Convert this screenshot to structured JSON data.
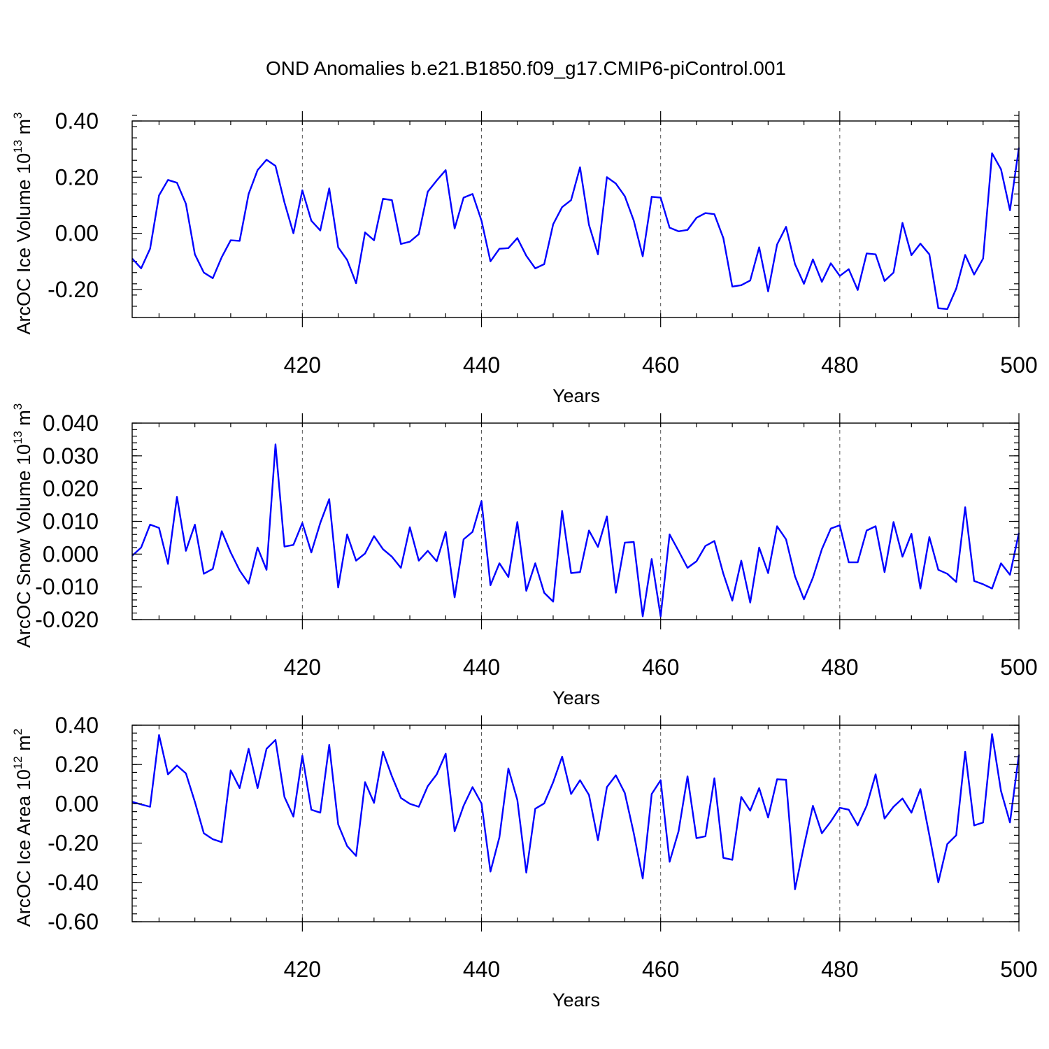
{
  "title": "OND Anomalies b.e21.B1850.f09_g17.CMIP6-piControl.001",
  "colors": {
    "line": "#0000ff",
    "grid": "#555555",
    "text": "#000000"
  },
  "chart_data": [
    {
      "type": "line",
      "ylabel": "ArcOC Ice Volume 10",
      "ylabel_exponent": "13",
      "ylabel_unit": " m",
      "ylabel_unit_exponent": "3",
      "xlabel": "Years",
      "xlim": [
        401,
        500
      ],
      "ylim": [
        -0.3,
        0.4
      ],
      "xticks": [
        420,
        440,
        460,
        480,
        500
      ],
      "xtick_labels": [
        "420",
        "440",
        "460",
        "480",
        "500"
      ],
      "yticks": [
        0.4,
        0.2,
        0.0,
        -0.2
      ],
      "ytick_labels": [
        "0.40",
        "0.20",
        "0.00",
        "-0.20"
      ],
      "yminor_step": 0.04,
      "grid": "dashed vertical at major x ticks",
      "series": [
        {
          "name": "ArcOC Ice Volume",
          "x_start": 401,
          "values": [
            -0.09,
            -0.125,
            -0.055,
            0.135,
            0.19,
            0.18,
            0.105,
            -0.075,
            -0.14,
            -0.16,
            -0.085,
            -0.025,
            -0.027,
            0.14,
            0.225,
            0.262,
            0.24,
            0.11,
            0.0,
            0.153,
            0.045,
            0.01,
            0.16,
            -0.05,
            -0.095,
            -0.178,
            0.003,
            -0.025,
            0.123,
            0.118,
            -0.038,
            -0.03,
            -0.003,
            0.148,
            0.188,
            0.225,
            0.017,
            0.127,
            0.14,
            0.045,
            -0.1,
            -0.055,
            -0.053,
            -0.017,
            -0.08,
            -0.125,
            -0.11,
            0.032,
            0.093,
            0.118,
            0.235,
            0.03,
            -0.075,
            0.2,
            0.177,
            0.132,
            0.045,
            -0.082,
            0.13,
            0.127,
            0.02,
            0.007,
            0.012,
            0.055,
            0.072,
            0.068,
            -0.017,
            -0.19,
            -0.185,
            -0.168,
            -0.05,
            -0.207,
            -0.04,
            0.023,
            -0.11,
            -0.18,
            -0.093,
            -0.173,
            -0.107,
            -0.152,
            -0.128,
            -0.202,
            -0.072,
            -0.075,
            -0.17,
            -0.14,
            0.037,
            -0.078,
            -0.037,
            -0.075,
            -0.267,
            -0.27,
            -0.197,
            -0.077,
            -0.147,
            -0.09,
            0.285,
            0.228,
            0.082,
            0.305
          ]
        }
      ]
    },
    {
      "type": "line",
      "ylabel": "ArcOC Snow Volume 10",
      "ylabel_exponent": "13",
      "ylabel_unit": " m",
      "ylabel_unit_exponent": "3",
      "xlabel": "Years",
      "xlim": [
        401,
        500
      ],
      "ylim": [
        -0.02,
        0.04
      ],
      "xticks": [
        420,
        440,
        460,
        480,
        500
      ],
      "xtick_labels": [
        "420",
        "440",
        "460",
        "480",
        "500"
      ],
      "yticks": [
        0.04,
        0.03,
        0.02,
        0.01,
        0.0,
        -0.01,
        -0.02
      ],
      "ytick_labels": [
        "0.040",
        "0.030",
        "0.020",
        "0.010",
        "0.000",
        "-0.010",
        "-0.020"
      ],
      "yminor_step": 0.002,
      "grid": "dashed vertical at major x ticks",
      "series": [
        {
          "name": "ArcOC Snow Volume",
          "x_start": 401,
          "values": [
            -0.0005,
            0.002,
            0.009,
            0.008,
            -0.003,
            0.0175,
            0.001,
            0.009,
            -0.006,
            -0.0045,
            0.007,
            0.0005,
            -0.005,
            -0.009,
            0.002,
            -0.0048,
            0.0335,
            0.0023,
            0.0028,
            0.0095,
            0.0005,
            0.0095,
            0.0168,
            -0.0102,
            0.006,
            -0.002,
            0.0002,
            0.0055,
            0.0015,
            -0.0008,
            -0.0042,
            0.0082,
            -0.002,
            0.001,
            -0.0022,
            0.0068,
            -0.0132,
            0.0045,
            0.0068,
            0.0162,
            -0.0095,
            -0.0028,
            -0.007,
            0.0098,
            -0.0112,
            -0.0028,
            -0.0118,
            -0.0145,
            0.0132,
            -0.0058,
            -0.0055,
            0.0072,
            0.0022,
            0.0115,
            -0.0118,
            0.0035,
            0.0037,
            -0.019,
            -0.0015,
            -0.019,
            0.006,
            0.001,
            -0.0042,
            -0.0022,
            0.0025,
            0.004,
            -0.006,
            -0.0142,
            -0.002,
            -0.0148,
            0.002,
            -0.0058,
            0.0085,
            0.0045,
            -0.0068,
            -0.0138,
            -0.0072,
            0.0015,
            0.0078,
            0.0088,
            -0.0025,
            -0.0025,
            0.0072,
            0.0085,
            -0.0055,
            0.0098,
            -0.0008,
            0.0062,
            -0.0105,
            0.0052,
            -0.0048,
            -0.006,
            -0.0085,
            0.0143,
            -0.0082,
            -0.0092,
            -0.0105,
            -0.0028,
            -0.0063,
            0.0065
          ]
        }
      ]
    },
    {
      "type": "line",
      "ylabel": "ArcOC Ice Area 10",
      "ylabel_exponent": "12",
      "ylabel_unit": " m",
      "ylabel_unit_exponent": "2",
      "xlabel": "Years",
      "xlim": [
        401,
        500
      ],
      "ylim": [
        -0.6,
        0.4
      ],
      "xticks": [
        420,
        440,
        460,
        480,
        500
      ],
      "xtick_labels": [
        "420",
        "440",
        "460",
        "480",
        "500"
      ],
      "yticks": [
        0.4,
        0.2,
        0.0,
        -0.2,
        -0.4,
        -0.6
      ],
      "ytick_labels": [
        "0.40",
        "0.20",
        "0.00",
        "-0.20",
        "-0.40",
        "-0.60"
      ],
      "yminor_step": 0.04,
      "grid": "dashed vertical at major x ticks",
      "series": [
        {
          "name": "ArcOC Ice Area",
          "x_start": 401,
          "values": [
            0.01,
            -0.003,
            -0.015,
            0.35,
            0.15,
            0.195,
            0.155,
            0.01,
            -0.15,
            -0.18,
            -0.195,
            0.17,
            0.08,
            0.28,
            0.08,
            0.28,
            0.325,
            0.035,
            -0.065,
            0.245,
            -0.03,
            -0.045,
            0.3,
            -0.105,
            -0.215,
            -0.265,
            0.11,
            0.005,
            0.265,
            0.14,
            0.03,
            0.0,
            -0.015,
            0.09,
            0.15,
            0.255,
            -0.14,
            -0.01,
            0.085,
            0.002,
            -0.345,
            -0.17,
            0.18,
            0.02,
            -0.35,
            -0.025,
            0.002,
            0.11,
            0.24,
            0.05,
            0.12,
            0.045,
            -0.185,
            0.085,
            0.145,
            0.055,
            -0.15,
            -0.38,
            0.05,
            0.12,
            -0.295,
            -0.14,
            0.14,
            -0.175,
            -0.165,
            0.13,
            -0.275,
            -0.285,
            0.035,
            -0.035,
            0.08,
            -0.07,
            0.125,
            0.122,
            -0.435,
            -0.215,
            -0.01,
            -0.15,
            -0.09,
            -0.02,
            -0.03,
            -0.11,
            -0.01,
            0.15,
            -0.075,
            -0.015,
            0.027,
            -0.045,
            0.075,
            -0.16,
            -0.4,
            -0.205,
            -0.16,
            0.265,
            -0.11,
            -0.095,
            0.355,
            0.065,
            -0.095,
            0.25
          ]
        }
      ]
    }
  ]
}
